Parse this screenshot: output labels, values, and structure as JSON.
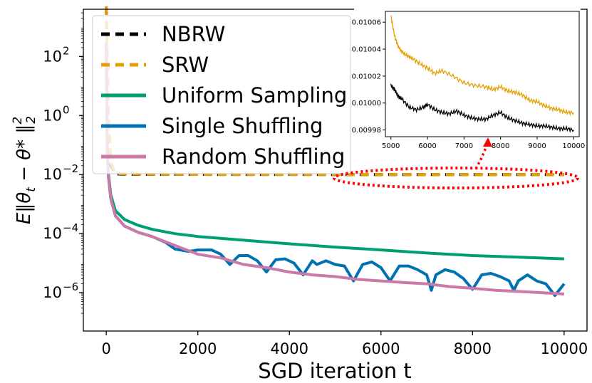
{
  "chart_data": {
    "type": "line",
    "xlabel": "SGD iteration t",
    "ylabel": "E‖θ_t − θ*‖²₂",
    "xlim": [
      -500,
      10500
    ],
    "ylim_log10": [
      -7.3,
      3.6
    ],
    "yscale": "log",
    "x_ticks": [
      0,
      2000,
      4000,
      6000,
      8000,
      10000
    ],
    "x_tick_labels": [
      "0",
      "2000",
      "4000",
      "6000",
      "8000",
      "10000"
    ],
    "y_ticks_log10": [
      2,
      0,
      -2,
      -4,
      -6
    ],
    "y_tick_base": "10",
    "y_tick_exponents": [
      "2",
      "0",
      "−2",
      "−4",
      "−6"
    ],
    "legend_position": "top-left",
    "series": [
      {
        "name": "NBRW",
        "color": "#000000",
        "dash": true,
        "x": [
          0,
          50,
          100,
          200,
          500,
          1000,
          3000,
          5000,
          7000,
          10000
        ],
        "y": [
          5000,
          0.5,
          0.02,
          0.0105,
          0.0102,
          0.0101,
          0.01005,
          0.01001,
          0.01,
          0.00998
        ]
      },
      {
        "name": "SRW",
        "color": "#E69F00",
        "dash": true,
        "x": [
          0,
          50,
          100,
          200,
          500,
          1000,
          3000,
          5000,
          7000,
          10000
        ],
        "y": [
          5000,
          1.0,
          0.025,
          0.011,
          0.0104,
          0.0102,
          0.0101,
          0.01006,
          0.01002,
          0.00999
        ]
      },
      {
        "name": "Uniform Sampling",
        "color": "#009E73",
        "dash": false,
        "x": [
          0,
          25,
          50,
          100,
          200,
          400,
          700,
          1000,
          1500,
          2000,
          3000,
          4000,
          5000,
          6000,
          7000,
          8000,
          9000,
          10000
        ],
        "y": [
          300,
          0.05,
          0.01,
          0.002,
          0.0006,
          0.0003,
          0.00019,
          0.00014,
          0.0001,
          8e-05,
          6e-05,
          4.5e-05,
          3.5e-05,
          2.8e-05,
          2.2e-05,
          1.8e-05,
          1.6e-05,
          1.4e-05
        ]
      },
      {
        "name": "Single Shuffling",
        "color": "#0072B2",
        "dash": false,
        "x": [
          0,
          25,
          50,
          100,
          200,
          400,
          700,
          1000,
          1300,
          1500,
          1800,
          2000,
          2300,
          2500,
          2700,
          2900,
          3100,
          3300,
          3500,
          3700,
          3900,
          4100,
          4300,
          4500,
          4600,
          4800,
          5000,
          5200,
          5400,
          5600,
          5800,
          6000,
          6200,
          6400,
          6600,
          6800,
          7000,
          7100,
          7200,
          7400,
          7600,
          7800,
          8000,
          8200,
          8400,
          8600,
          8800,
          8900,
          9000,
          9200,
          9400,
          9600,
          9800,
          10000
        ],
        "y": [
          300,
          0.05,
          0.008,
          0.0015,
          0.0004,
          0.00018,
          0.00011,
          8e-05,
          5e-05,
          3e-05,
          2.5e-05,
          2.8e-05,
          2.8e-05,
          2e-05,
          9e-06,
          1.8e-05,
          1.8e-05,
          1.2e-05,
          5e-06,
          1.3e-05,
          1.4e-05,
          1e-05,
          4e-06,
          1.2e-05,
          9e-06,
          1.2e-05,
          9e-06,
          8e-06,
          2.5e-06,
          9e-06,
          1.1e-05,
          7e-06,
          2.5e-06,
          8e-06,
          8e-06,
          6e-06,
          4e-06,
          1.2e-06,
          4e-06,
          6e-06,
          5e-06,
          3e-06,
          1.3e-06,
          4e-06,
          4.5e-06,
          3.5e-06,
          2.5e-06,
          1.2e-06,
          2.5e-06,
          4e-06,
          2.5e-06,
          2e-06,
          8e-07,
          2e-06
        ]
      },
      {
        "name": "Random Shuffling",
        "color": "#CC79A7",
        "dash": false,
        "x": [
          0,
          25,
          50,
          100,
          200,
          400,
          700,
          1000,
          1500,
          2000,
          2500,
          3000,
          3500,
          4000,
          4500,
          5000,
          5500,
          6000,
          6500,
          7000,
          7500,
          8000,
          8500,
          9000,
          9500,
          10000
        ],
        "y": [
          300,
          0.05,
          0.008,
          0.0015,
          0.0004,
          0.00018,
          0.00011,
          8e-05,
          4e-05,
          2e-05,
          1.5e-05,
          9e-06,
          7e-06,
          5e-06,
          4e-06,
          3.5e-06,
          2.8e-06,
          2.5e-06,
          2.2e-06,
          2e-06,
          1.6e-06,
          1.4e-06,
          1.2e-06,
          1.1e-06,
          1e-06,
          9e-07
        ]
      }
    ],
    "inset": {
      "xlim": [
        4850,
        10150
      ],
      "ylim": [
        0.009975,
        0.010068
      ],
      "x_ticks": [
        5000,
        6000,
        7000,
        8000,
        9000,
        10000
      ],
      "x_tick_labels": [
        "5000",
        "6000",
        "7000",
        "8000",
        "9000",
        "10000"
      ],
      "y_ticks": [
        0.00998,
        0.01,
        0.01002,
        0.01004,
        0.01006
      ],
      "y_tick_labels": [
        "0.00998",
        "0.01000",
        "0.01002",
        "0.01004",
        "0.01006"
      ],
      "series": [
        {
          "name": "SRW",
          "color": "#E69F00",
          "x": [
            5000,
            5100,
            5200,
            5300,
            5450,
            5600,
            5800,
            6000,
            6200,
            6400,
            6700,
            7000,
            7300,
            7600,
            7800,
            8000,
            8200,
            8400,
            8600,
            8800,
            9000,
            9200,
            9400,
            9600,
            9800,
            10000
          ],
          "y": [
            0.010065,
            0.01005,
            0.010042,
            0.010038,
            0.010035,
            0.010033,
            0.010029,
            0.010026,
            0.010022,
            0.010024,
            0.01002,
            0.010015,
            0.010013,
            0.010012,
            0.01001,
            0.010012,
            0.010009,
            0.010008,
            0.010006,
            0.010002,
            0.010001,
            0.009998,
            0.009996,
            0.009995,
            0.009993,
            0.009993
          ]
        },
        {
          "name": "NBRW",
          "color": "#000000",
          "x": [
            5000,
            5100,
            5200,
            5300,
            5500,
            5700,
            5900,
            6000,
            6200,
            6400,
            6600,
            6800,
            7000,
            7200,
            7400,
            7600,
            7800,
            8000,
            8200,
            8400,
            8600,
            8800,
            9000,
            9200,
            9400,
            9600,
            9800,
            10000
          ],
          "y": [
            0.010013,
            0.01001,
            0.010005,
            0.010003,
            0.009997,
            0.009995,
            0.009997,
            0.009999,
            0.009995,
            0.009993,
            0.009992,
            0.009994,
            0.009991,
            0.009989,
            0.009988,
            0.009988,
            0.009991,
            0.009993,
            0.009989,
            0.009987,
            0.009985,
            0.009984,
            0.009983,
            0.009983,
            0.009982,
            0.009981,
            0.009981,
            0.00998
          ]
        }
      ]
    }
  }
}
